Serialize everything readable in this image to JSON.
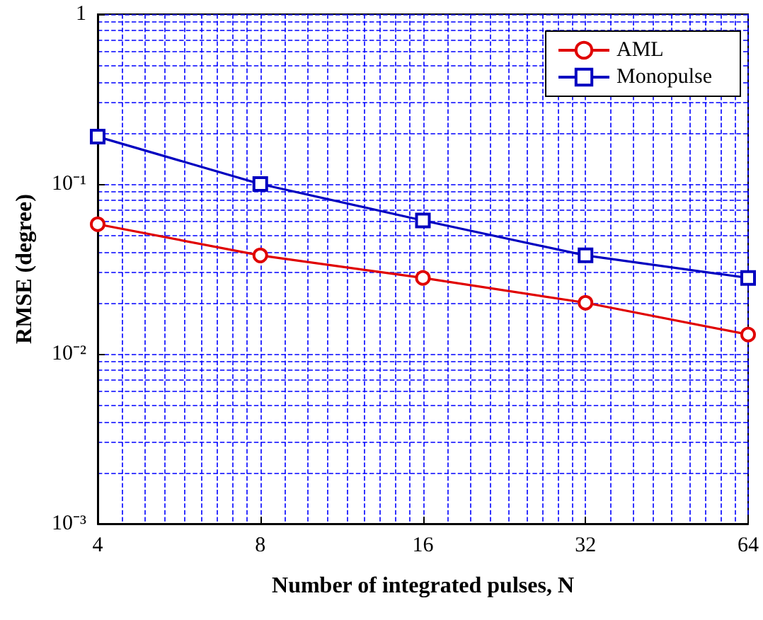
{
  "chart_data": {
    "type": "line",
    "xlabel": "Number of integrated pulses, N",
    "ylabel": "RMSE (degree)",
    "x": [
      4,
      8,
      16,
      32,
      64
    ],
    "series": [
      {
        "name": "AML",
        "color": "#e00000",
        "marker": "circle",
        "values": [
          0.058,
          0.038,
          0.028,
          0.02,
          0.013
        ]
      },
      {
        "name": "Monopulse",
        "color": "#0000c0",
        "marker": "square",
        "values": [
          0.19,
          0.1,
          0.061,
          0.038,
          0.028
        ]
      }
    ],
    "log": "xy",
    "xlim": [
      4,
      64
    ],
    "xticks": [
      4,
      8,
      16,
      32,
      64
    ],
    "ylim": [
      0.001,
      1
    ],
    "yticks": [
      {
        "value": 0.001,
        "label": "10⁻³"
      },
      {
        "value": 0.01,
        "label": "10⁻²"
      },
      {
        "value": 0.1,
        "label": "10⁻¹"
      },
      {
        "value": 1,
        "label": "1"
      }
    ],
    "grid": true,
    "legend": "top right",
    "line_style": "solid"
  }
}
